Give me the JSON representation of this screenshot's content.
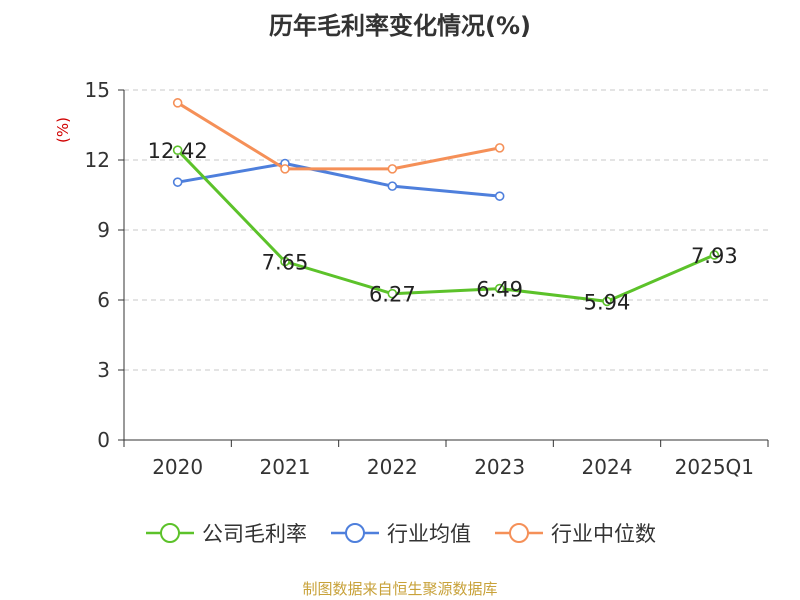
{
  "chart_data": {
    "type": "line",
    "title": "历年毛利率变化情况(%)",
    "ylabel": "(%)",
    "xlabel": "",
    "categories": [
      "2020",
      "2021",
      "2022",
      "2023",
      "2024",
      "2025Q1"
    ],
    "ylim": [
      0,
      15
    ],
    "yticks": [
      0,
      3,
      6,
      9,
      12,
      15
    ],
    "grid": true,
    "legend_position": "bottom",
    "series": [
      {
        "name": "公司毛利率",
        "color": "#5cc22a",
        "values": [
          12.42,
          7.65,
          6.27,
          6.49,
          5.94,
          7.93
        ],
        "show_labels": true,
        "labels": [
          "12.42",
          "7.65",
          "6.27",
          "6.49",
          "5.94",
          "7.93"
        ]
      },
      {
        "name": "行业均值",
        "color": "#4e7fdc",
        "values": [
          11.05,
          11.85,
          10.88,
          10.45,
          null,
          null
        ],
        "show_labels": false
      },
      {
        "name": "行业中位数",
        "color": "#f59058",
        "values": [
          14.45,
          11.62,
          11.62,
          12.52,
          null,
          null
        ],
        "show_labels": false
      }
    ]
  },
  "source_note": "制图数据来自恒生聚源数据库"
}
